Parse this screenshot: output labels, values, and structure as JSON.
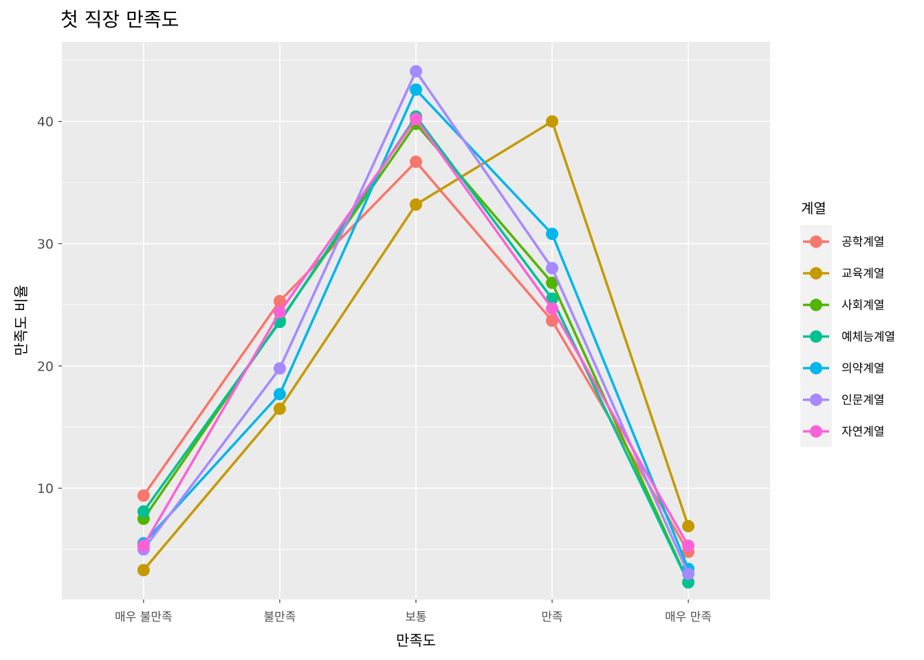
{
  "chart_data": {
    "type": "line",
    "title": "첫 직장 만족도",
    "xlabel": "만족도",
    "ylabel": "만족도 비율",
    "categories": [
      "매우 불만족",
      "불만족",
      "보통",
      "만족",
      "매우 만족"
    ],
    "yticks": [
      10,
      20,
      30,
      40
    ],
    "ylim": [
      0.9,
      46.5
    ],
    "grid": true,
    "legend": {
      "title": "계열",
      "position": "right"
    },
    "series": [
      {
        "name": "공학계열",
        "color": "#F8766D",
        "values": [
          9.4,
          25.3,
          36.7,
          23.7,
          4.8
        ]
      },
      {
        "name": "교육계열",
        "color": "#C49A00",
        "values": [
          3.3,
          16.5,
          33.2,
          40.0,
          6.9
        ]
      },
      {
        "name": "사회계열",
        "color": "#53B400",
        "values": [
          7.5,
          23.7,
          39.8,
          26.8,
          2.3
        ]
      },
      {
        "name": "예체능계열",
        "color": "#00C094",
        "values": [
          8.1,
          23.6,
          40.4,
          25.5,
          2.3
        ]
      },
      {
        "name": "의약계열",
        "color": "#00B6EB",
        "values": [
          5.5,
          17.7,
          42.6,
          30.8,
          3.4
        ]
      },
      {
        "name": "인문계열",
        "color": "#A58AFF",
        "values": [
          5.0,
          19.8,
          44.1,
          28.0,
          3.0
        ]
      },
      {
        "name": "자연계열",
        "color": "#FB61D7",
        "values": [
          5.3,
          24.4,
          40.2,
          24.7,
          5.3
        ]
      }
    ]
  }
}
